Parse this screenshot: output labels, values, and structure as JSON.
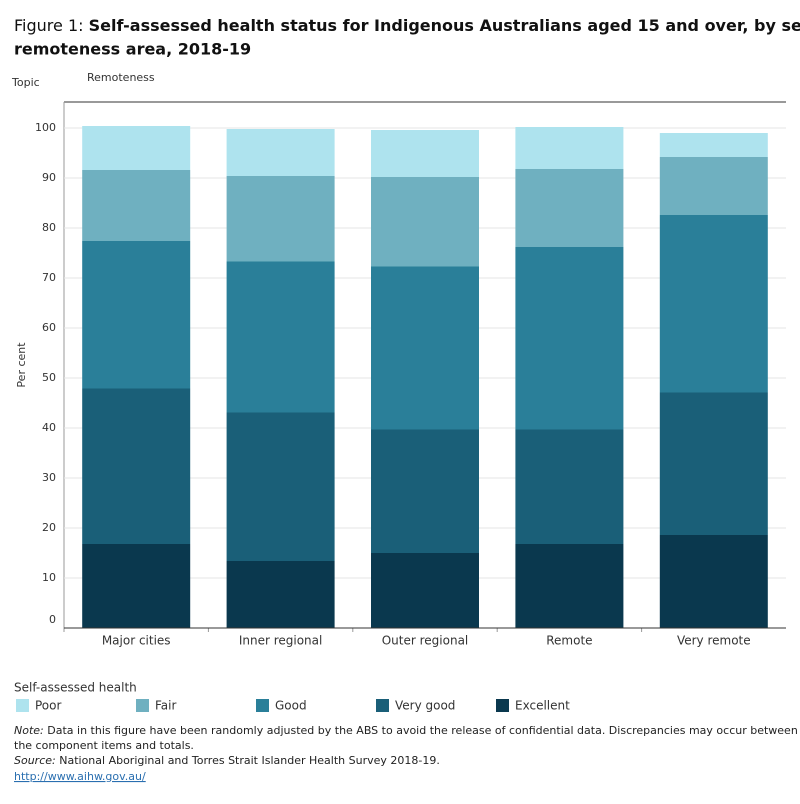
{
  "chart_data": {
    "type": "stacked_bar",
    "title_prefix": "Figure 1:",
    "title_line1": "Self-assessed health status for Indigenous Australians aged 15 and over, by sex, state and",
    "title_line2": "remoteness area, 2018-19",
    "filter_label": "Topic",
    "column_header": "Remoteness",
    "y_label": "Per cent",
    "categories": [
      "Major cities",
      "Inner regional",
      "Outer regional",
      "Remote",
      "Very remote"
    ],
    "series": [
      {
        "name": "Excellent",
        "color": "#0a384e",
        "values": [
          16.8,
          13.4,
          15.0,
          16.8,
          18.6
        ]
      },
      {
        "name": "Very good",
        "color": "#1a5f78",
        "values": [
          31.1,
          29.7,
          24.7,
          22.9,
          28.5
        ]
      },
      {
        "name": "Good",
        "color": "#2a7f99",
        "values": [
          29.5,
          30.2,
          32.6,
          36.5,
          35.5
        ]
      },
      {
        "name": "Fair",
        "color": "#6fb0c0",
        "values": [
          14.2,
          17.1,
          17.9,
          15.6,
          11.6
        ]
      },
      {
        "name": "Poor",
        "color": "#aee3ee",
        "values": [
          8.8,
          9.4,
          9.4,
          8.4,
          4.8
        ]
      }
    ],
    "ylim": [
      0,
      105.2
    ],
    "yticks": [
      0,
      10,
      20,
      30,
      40,
      50,
      60,
      70,
      80,
      90,
      100
    ],
    "grid": true,
    "legend_title": "Self-assessed health",
    "note_label": "Note:",
    "note_line1": "Data in this figure have been randomly adjusted by the ABS to avoid the release of confidential data. Discrepancies may occur between some of",
    "note_line2": "the component items and totals.",
    "source_label": "Source:",
    "source_text": "National Aboriginal and Torres Strait Islander Health Survey 2018-19.",
    "url": "http://www.aihw.gov.au/"
  }
}
